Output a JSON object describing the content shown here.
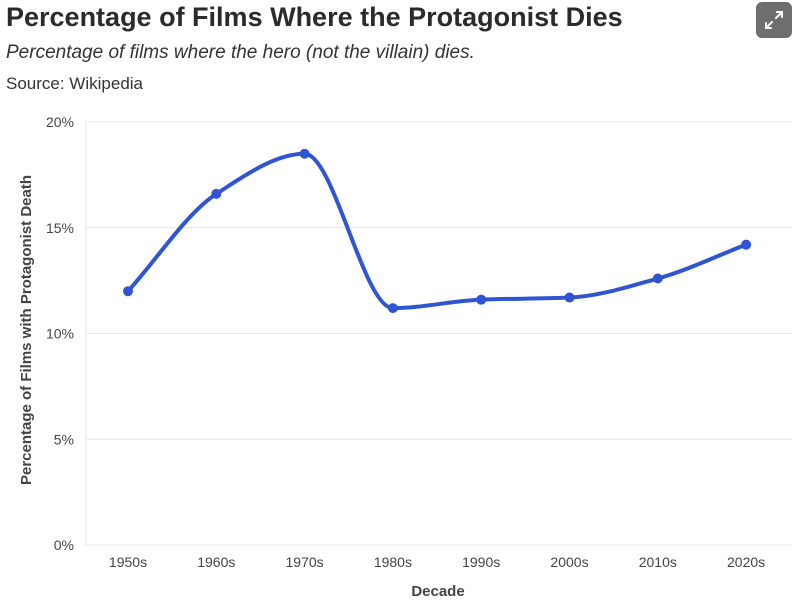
{
  "header": {
    "title": "Percentage of Films Where the Protagonist Dies",
    "subtitle": "Percentage of films where the hero (not the villain) dies.",
    "source": "Source: Wikipedia",
    "expand_icon": "expand-icon"
  },
  "chart_data": {
    "type": "line",
    "categories": [
      "1950s",
      "1960s",
      "1970s",
      "1980s",
      "1990s",
      "2000s",
      "2010s",
      "2020s"
    ],
    "series": [
      {
        "values": [
          12.0,
          16.6,
          18.5,
          11.2,
          11.6,
          11.7,
          12.6,
          14.2
        ]
      }
    ],
    "xlabel": "Decade",
    "ylabel": "Percentage of Films with Protagonist Death",
    "ylim": [
      0,
      20
    ],
    "yticks": [
      0,
      5,
      10,
      15,
      20
    ],
    "ytick_labels": [
      "0%",
      "5%",
      "10%",
      "15%",
      "20%"
    ],
    "grid": true,
    "line_color": "#2f55d4"
  }
}
